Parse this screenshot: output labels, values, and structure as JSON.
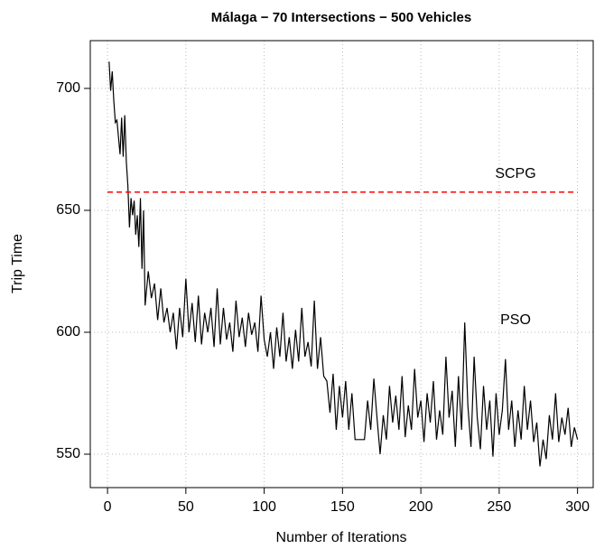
{
  "chart_data": {
    "type": "line",
    "title": "Málaga − 70 Intersections − 500 Vehicles",
    "xlabel": "Number of Iterations",
    "ylabel": "Trip Time",
    "xlim": [
      -11,
      310
    ],
    "ylim": [
      536.3,
      719.6
    ],
    "xticks": [
      0,
      50,
      100,
      150,
      200,
      250,
      300
    ],
    "yticks": [
      550,
      600,
      650,
      700
    ],
    "grid": true,
    "series": [
      {
        "name": "PSO",
        "color": "#000000",
        "x": [
          1,
          2,
          3,
          4,
          5,
          6,
          7,
          8,
          9,
          10,
          11,
          12,
          13,
          14,
          15,
          16,
          17,
          18,
          19,
          20,
          21,
          22,
          23,
          24,
          26,
          28,
          30,
          32,
          34,
          36,
          38,
          40,
          42,
          44,
          46,
          48,
          50,
          52,
          54,
          56,
          58,
          60,
          62,
          64,
          66,
          68,
          70,
          72,
          74,
          76,
          78,
          80,
          82,
          84,
          86,
          88,
          90,
          92,
          94,
          96,
          98,
          100,
          102,
          104,
          106,
          108,
          110,
          112,
          114,
          116,
          118,
          120,
          122,
          124,
          126,
          128,
          130,
          132,
          134,
          136,
          138,
          140,
          142,
          144,
          146,
          148,
          150,
          152,
          154,
          156,
          158,
          160,
          164,
          166,
          168,
          170,
          172,
          174,
          176,
          178,
          180,
          182,
          184,
          186,
          188,
          190,
          192,
          194,
          196,
          198,
          200,
          202,
          204,
          206,
          208,
          210,
          212,
          214,
          216,
          218,
          220,
          222,
          224,
          226,
          228,
          230,
          232,
          234,
          236,
          238,
          240,
          242,
          244,
          246,
          248,
          250,
          252,
          254,
          256,
          258,
          260,
          262,
          264,
          266,
          268,
          270,
          272,
          274,
          276,
          278,
          280,
          282,
          284,
          286,
          288,
          290,
          292,
          294,
          296,
          298,
          300
        ],
        "values": [
          711,
          699,
          707,
          695,
          686,
          687,
          680,
          673,
          688,
          672,
          689,
          670,
          660,
          643,
          655,
          648,
          654,
          640,
          648,
          635,
          655,
          626,
          650,
          611,
          625,
          614,
          620,
          605,
          618,
          604,
          610,
          600,
          608,
          593,
          610,
          598,
          622,
          600,
          612,
          596,
          615,
          595,
          608,
          600,
          610,
          594,
          618,
          595,
          610,
          597,
          604,
          592,
          613,
          598,
          606,
          594,
          608,
          599,
          604,
          592,
          615,
          597,
          590,
          600,
          585,
          602,
          590,
          608,
          588,
          598,
          585,
          601,
          588,
          610,
          590,
          596,
          586,
          613,
          585,
          598,
          582,
          580,
          567,
          583,
          560,
          578,
          565,
          580,
          560,
          575,
          556,
          556,
          556,
          572,
          560,
          581,
          565,
          550,
          566,
          556,
          578,
          563,
          574,
          560,
          582,
          557,
          570,
          560,
          585,
          565,
          572,
          555,
          575,
          563,
          580,
          556,
          568,
          558,
          590,
          565,
          576,
          553,
          582,
          560,
          604,
          570,
          553,
          590,
          565,
          552,
          578,
          560,
          572,
          549,
          575,
          558,
          568,
          589,
          560,
          572,
          553,
          568,
          556,
          578,
          560,
          572,
          555,
          563,
          545,
          556,
          548,
          566,
          556,
          575,
          555,
          565,
          558,
          569,
          553,
          561,
          556
        ]
      },
      {
        "name": "SCPG",
        "color": "#ff0000",
        "dashed": true,
        "x": [
          0,
          300
        ],
        "values": [
          657.5,
          657.5
        ]
      }
    ]
  }
}
